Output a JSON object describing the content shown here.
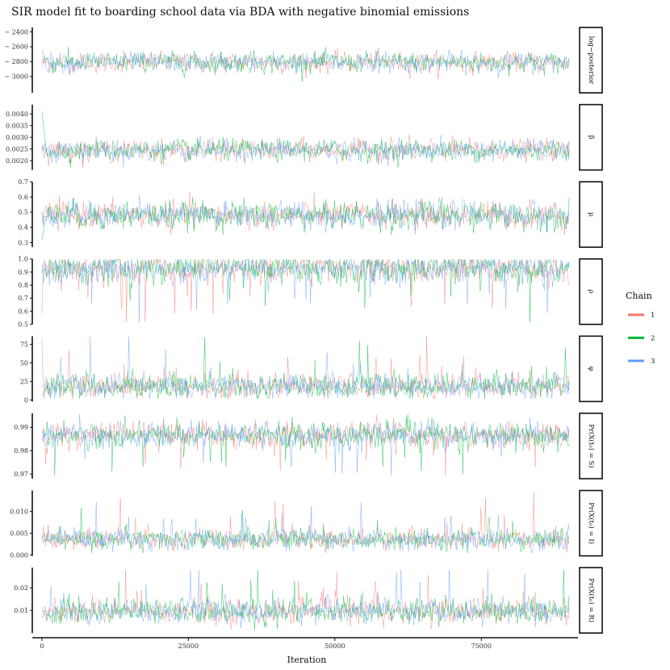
{
  "chart_data": {
    "type": "line",
    "title": "SIR model fit to boarding school data via BDA with negative binomial emissions",
    "xlabel": "Iteration",
    "xlim": [
      -1500,
      91500
    ],
    "x_ticks": [
      {
        "value": 0,
        "label": "0"
      },
      {
        "value": 25000,
        "label": "25000"
      },
      {
        "value": 50000,
        "label": "50000"
      },
      {
        "value": 75000,
        "label": "75000"
      }
    ],
    "iterations": 90000,
    "legend": {
      "title": "Chain",
      "position": "right",
      "entries": [
        {
          "name": "1",
          "color": "#F8766D"
        },
        {
          "name": "2",
          "color": "#00BA38"
        },
        {
          "name": "3",
          "color": "#619CFF"
        }
      ]
    },
    "panels": [
      {
        "strip": "log−posterior",
        "ylim": [
          -3220,
          -2340
        ],
        "ticks": [
          {
            "value": -2400,
            "label": "− 2400"
          },
          {
            "value": -2600,
            "label": "− 2600"
          },
          {
            "value": -2800,
            "label": "− 2800"
          },
          {
            "value": -3000,
            "label": "− 3000"
          }
        ],
        "center": -2810,
        "spread": 75,
        "min": -3150,
        "max": -2380,
        "start": -2650
      },
      {
        "strip": "β",
        "ylim": [
          0.0016,
          0.0044
        ],
        "ticks": [
          {
            "value": 0.004,
            "label": "0.0040"
          },
          {
            "value": 0.0035,
            "label": "0.0035"
          },
          {
            "value": 0.003,
            "label": "0.0030"
          },
          {
            "value": 0.0025,
            "label": "0.0025"
          },
          {
            "value": 0.002,
            "label": "0.0020"
          }
        ],
        "center": 0.00245,
        "spread": 0.00025,
        "min": 0.0017,
        "max": 0.0042,
        "start": 0.0041
      },
      {
        "strip": "μ",
        "ylim": [
          0.27,
          0.7
        ],
        "ticks": [
          {
            "value": 0.7,
            "label": "0.7"
          },
          {
            "value": 0.6,
            "label": "0.6"
          },
          {
            "value": 0.5,
            "label": "0.5"
          },
          {
            "value": 0.4,
            "label": "0.4"
          },
          {
            "value": 0.3,
            "label": "0.3"
          }
        ],
        "center": 0.48,
        "spread": 0.05,
        "min": 0.3,
        "max": 0.68,
        "start": 0.32
      },
      {
        "strip": "ρ",
        "ylim": [
          0.5,
          1.0
        ],
        "ticks": [
          {
            "value": 1.0,
            "label": "1.0"
          },
          {
            "value": 0.9,
            "label": "0.9"
          },
          {
            "value": 0.8,
            "label": "0.8"
          },
          {
            "value": 0.7,
            "label": "0.7"
          },
          {
            "value": 0.6,
            "label": "0.6"
          },
          {
            "value": 0.5,
            "label": "0.5"
          }
        ],
        "center": 0.93,
        "spread": 0.06,
        "min": 0.52,
        "max": 0.995,
        "start": 0.9,
        "skew": "down"
      },
      {
        "strip": "φ",
        "ylim": [
          -2,
          86
        ],
        "ticks": [
          {
            "value": 75,
            "label": "75"
          },
          {
            "value": 50,
            "label": "50"
          },
          {
            "value": 25,
            "label": "25"
          },
          {
            "value": 0,
            "label": "0"
          }
        ],
        "center": 18,
        "spread": 9,
        "min": 2,
        "max": 85,
        "start": 5,
        "skew": "up"
      },
      {
        "strip": "Pr(X(t₀) = S)",
        "ylim": [
          0.968,
          0.996
        ],
        "ticks": [
          {
            "value": 0.99,
            "label": "0.99"
          },
          {
            "value": 0.98,
            "label": "0.98"
          },
          {
            "value": 0.97,
            "label": "0.97"
          }
        ],
        "center": 0.9868,
        "spread": 0.003,
        "min": 0.9695,
        "max": 0.9955,
        "start": 0.986,
        "skew": "down"
      },
      {
        "strip": "Pr(X(t₀) = I)",
        "ylim": [
          -0.0002,
          0.0148
        ],
        "ticks": [
          {
            "value": 0.01,
            "label": "0.010"
          },
          {
            "value": 0.005,
            "label": "0.005"
          },
          {
            "value": 0.0,
            "label": "0.000"
          }
        ],
        "center": 0.0035,
        "spread": 0.0013,
        "min": 0.0004,
        "max": 0.0145,
        "start": 0.003,
        "skew": "up"
      },
      {
        "strip": "Pr(X(t₀) = R)",
        "ylim": [
          0.0,
          0.029
        ],
        "ticks": [
          {
            "value": 0.02,
            "label": "0.02"
          },
          {
            "value": 0.01,
            "label": "0.01"
          }
        ],
        "center": 0.0095,
        "spread": 0.003,
        "min": 0.0015,
        "max": 0.028,
        "start": 0.01,
        "skew": "up"
      }
    ]
  }
}
